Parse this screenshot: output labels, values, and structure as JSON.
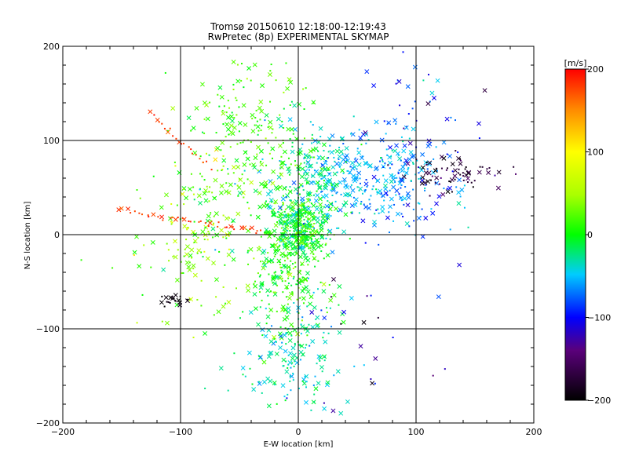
{
  "chart_data": {
    "type": "scatter",
    "title": "Tromsø 20150610 12:18:00-12:19:43",
    "subtitle": "RwPretec (8p) EXPERIMENTAL SKYMAP",
    "xlabel": "E-W location [km]",
    "ylabel": "N-S location [km]",
    "xlim": [
      -200,
      200
    ],
    "ylim": [
      -200,
      200
    ],
    "xticks": [
      -200,
      -100,
      0,
      100,
      200
    ],
    "yticks": [
      -200,
      -100,
      0,
      100,
      200
    ],
    "grid_lines": [
      -100,
      0,
      100
    ],
    "grid": true,
    "colorbar": {
      "label": "[m/s]",
      "min": -200,
      "max": 200,
      "ticks": [
        200,
        100,
        0,
        -100,
        -200
      ],
      "placement": "right"
    },
    "point_markers": [
      "x",
      "dot"
    ],
    "colors": {
      "background": "#ffffff",
      "axes": "#000000"
    },
    "clusters": [
      {
        "x": 0,
        "y": 5,
        "sx": 12,
        "sy": 18,
        "n": 380,
        "v": 2,
        "vs": 22
      },
      {
        "x": -10,
        "y": -50,
        "sx": 18,
        "sy": 30,
        "n": 190,
        "v": 10,
        "vs": 20
      },
      {
        "x": -5,
        "y": -130,
        "sx": 22,
        "sy": 30,
        "n": 170,
        "v": -35,
        "vs": 18
      },
      {
        "x": 45,
        "y": 60,
        "sx": 35,
        "sy": 25,
        "n": 300,
        "v": -55,
        "vs": 15
      },
      {
        "x": 10,
        "y": 60,
        "sx": 18,
        "sy": 22,
        "n": 110,
        "v": -20,
        "vs": 20
      },
      {
        "x": -40,
        "y": 110,
        "sx": 30,
        "sy": 40,
        "n": 200,
        "v": 15,
        "vs": 18
      },
      {
        "x": -60,
        "y": 40,
        "sx": 25,
        "sy": 25,
        "n": 80,
        "v": 30,
        "vs": 30
      },
      {
        "x": -85,
        "y": -20,
        "sx": 20,
        "sy": 30,
        "n": 60,
        "v": 40,
        "vs": 35
      },
      {
        "x": -100,
        "y": -40,
        "sx": 35,
        "sy": 50,
        "n": 45,
        "v": 25,
        "vs": 25
      },
      {
        "x": 95,
        "y": 40,
        "sx": 25,
        "sy": 25,
        "n": 80,
        "v": -75,
        "vs": 20
      },
      {
        "x": 100,
        "y": 120,
        "sx": 25,
        "sy": 30,
        "n": 50,
        "v": -90,
        "vs": 25
      },
      {
        "x": 135,
        "y": 65,
        "sx": 20,
        "sy": 10,
        "n": 70,
        "v": -170,
        "vs": 20
      },
      {
        "x": 60,
        "y": -100,
        "sx": 40,
        "sy": 40,
        "n": 25,
        "v": -130,
        "vs": 40
      },
      {
        "x": -108,
        "y": -70,
        "sx": 6,
        "sy": 4,
        "n": 20,
        "v": -195,
        "vs": 10
      }
    ],
    "lines": [
      {
        "x0": -150,
        "y0": 26,
        "x1": -30,
        "y1": 3,
        "n": 40,
        "v": 180
      },
      {
        "x0": -125,
        "y0": 128,
        "x1": -75,
        "y1": 70,
        "n": 22,
        "v": 175
      }
    ]
  }
}
